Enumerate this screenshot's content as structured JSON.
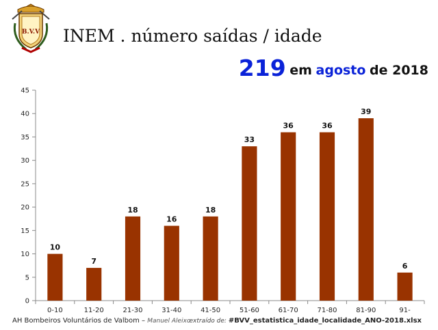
{
  "header": {
    "title": "INEM . número saídas / idade",
    "logo_text": "B.V.V",
    "total": "219",
    "subtitle_em": "em",
    "subtitle_month": "agosto",
    "subtitle_rest": "de 2018"
  },
  "colors": {
    "bar": "#993300",
    "accent": "#0a22d8",
    "text": "#111111"
  },
  "chart_data": {
    "type": "bar",
    "title": "",
    "xlabel": "",
    "ylabel": "",
    "categories": [
      "0-10",
      "11-20",
      "21-30",
      "31-40",
      "41-50",
      "51-60",
      "61-70",
      "71-80",
      "81-90",
      "91-"
    ],
    "values": [
      10,
      7,
      18,
      16,
      18,
      33,
      36,
      36,
      39,
      6
    ],
    "ylim": [
      0,
      45
    ],
    "yticks": [
      0,
      5,
      10,
      15,
      20,
      25,
      30,
      35,
      40,
      45
    ],
    "grid": false,
    "legend": "none",
    "data_labels": true
  },
  "footer": {
    "org": "AH Bombeiros Voluntários de Valbom",
    "separator": " – ",
    "author": "Manuel Aleixo",
    "source_prefix": "extraído de: ",
    "source_file": "#BVV_estatistica_idade_localidade_ANO-2018.xlsx"
  }
}
